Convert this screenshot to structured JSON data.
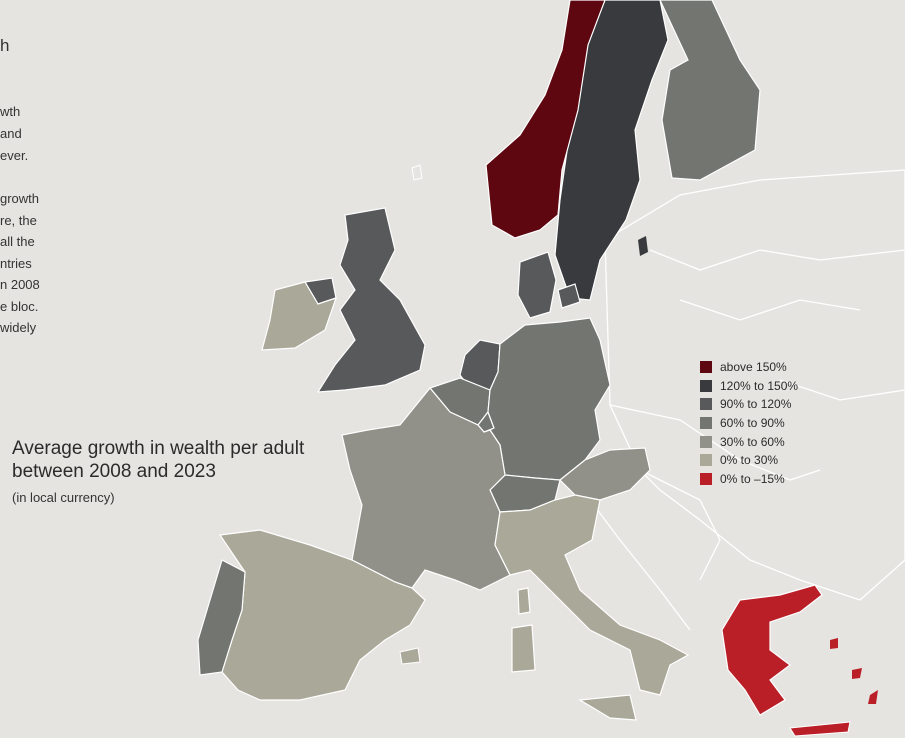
{
  "intro_fragments": [
    "h",
    "wth",
    "and",
    "ever.",
    "growth",
    "re, the",
    "all the",
    "ntries",
    "n 2008",
    "e bloc.",
    "widely"
  ],
  "map": {
    "title": "Average growth in wealth per adult between 2008 and 2023",
    "subtitle": "(in local currency)",
    "colors": {
      "background": "#e6e4e0",
      "non_covered_land": "#e6e4e0",
      "borders": "#ffffff",
      "above_150": "#5e0711",
      "120_150": "#383a3d",
      "90_120": "#58595b",
      "60_90": "#737570",
      "30_60": "#91918a",
      "0_30": "#aaa899",
      "neg": "#ba1f28"
    },
    "legend": [
      {
        "label": "above 150%",
        "color": "#5e0711"
      },
      {
        "label": "120% to 150%",
        "color": "#383a3d"
      },
      {
        "label": "90% to 120%",
        "color": "#58595b"
      },
      {
        "label": "60% to 90%",
        "color": "#737570"
      },
      {
        "label": "30% to 60%",
        "color": "#91918a"
      },
      {
        "label": "0% to 30%",
        "color": "#aaa899"
      },
      {
        "label": "0% to –15%",
        "color": "#ba1f28"
      }
    ]
  }
}
